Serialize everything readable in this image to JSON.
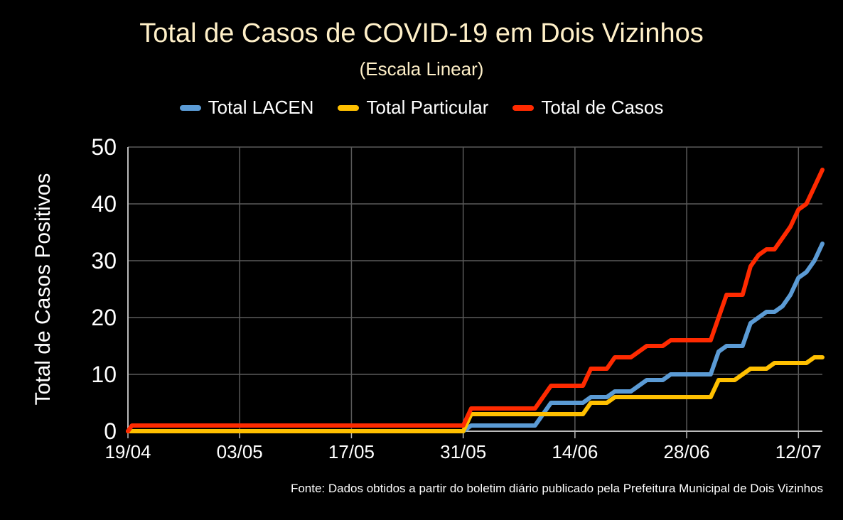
{
  "chart_data": {
    "type": "line",
    "title": "Total de Casos de COVID-19 em Dois Vizinhos",
    "subtitle": "(Escala Linear)",
    "xlabel": "",
    "ylabel": "Total de Casos Positivos",
    "ylim": [
      0,
      50
    ],
    "yticks": [
      0,
      10,
      20,
      30,
      40,
      50
    ],
    "xticks": [
      "19/04",
      "03/05",
      "17/05",
      "31/05",
      "14/06",
      "28/06",
      "12/07"
    ],
    "xtick_days": [
      0,
      14,
      28,
      42,
      56,
      70,
      84
    ],
    "xlim_days": [
      0,
      87
    ],
    "grid": true,
    "legend_position": "top",
    "source_note": "Fonte: Dados obtidos a partir do boletim diário publicado pela Prefeitura Municipal de Dois Vizinhos",
    "series": [
      {
        "name": "Total LACEN",
        "color": "#5b9bd5",
        "points": [
          [
            0,
            0
          ],
          [
            1,
            0
          ],
          [
            42,
            0
          ],
          [
            43,
            1
          ],
          [
            51,
            1
          ],
          [
            53,
            5
          ],
          [
            57,
            5
          ],
          [
            58,
            6
          ],
          [
            60,
            6
          ],
          [
            61,
            7
          ],
          [
            63,
            7
          ],
          [
            65,
            9
          ],
          [
            67,
            9
          ],
          [
            68,
            10
          ],
          [
            73,
            10
          ],
          [
            74,
            14
          ],
          [
            75,
            15
          ],
          [
            77,
            15
          ],
          [
            78,
            19
          ],
          [
            80,
            21
          ],
          [
            81,
            21
          ],
          [
            82,
            22
          ],
          [
            83,
            24
          ],
          [
            84,
            27
          ],
          [
            85,
            28
          ],
          [
            86,
            30
          ],
          [
            87,
            33
          ]
        ]
      },
      {
        "name": "Total Particular",
        "color": "#ffc000",
        "points": [
          [
            0,
            0
          ],
          [
            1,
            0
          ],
          [
            42,
            0
          ],
          [
            43,
            3
          ],
          [
            57,
            3
          ],
          [
            58,
            5
          ],
          [
            60,
            5
          ],
          [
            61,
            6
          ],
          [
            73,
            6
          ],
          [
            74,
            9
          ],
          [
            76,
            9
          ],
          [
            78,
            11
          ],
          [
            80,
            11
          ],
          [
            81,
            12
          ],
          [
            84,
            12
          ],
          [
            85,
            12
          ],
          [
            86,
            13
          ],
          [
            87,
            13
          ]
        ]
      },
      {
        "name": "Total de Casos",
        "color": "#ff2a00",
        "points": [
          [
            0,
            0
          ],
          [
            0.5,
            1
          ],
          [
            42,
            1
          ],
          [
            43,
            4
          ],
          [
            51,
            4
          ],
          [
            53,
            8
          ],
          [
            57,
            8
          ],
          [
            58,
            11
          ],
          [
            60,
            11
          ],
          [
            61,
            13
          ],
          [
            63,
            13
          ],
          [
            65,
            15
          ],
          [
            67,
            15
          ],
          [
            68,
            16
          ],
          [
            73,
            16
          ],
          [
            75,
            24
          ],
          [
            77,
            24
          ],
          [
            78,
            29
          ],
          [
            79,
            31
          ],
          [
            80,
            32
          ],
          [
            81,
            32
          ],
          [
            82,
            34
          ],
          [
            83,
            36
          ],
          [
            84,
            39
          ],
          [
            85,
            40
          ],
          [
            86,
            43
          ],
          [
            87,
            46
          ]
        ]
      }
    ]
  }
}
